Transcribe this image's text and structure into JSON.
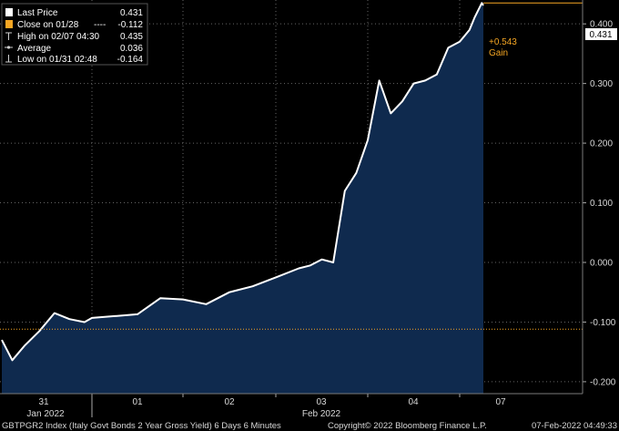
{
  "legend": {
    "items": [
      {
        "name": "legend-last-price",
        "icon": "white-square-icon",
        "label": "Last Price",
        "value": "0.431",
        "color": "#ffffff"
      },
      {
        "name": "legend-close",
        "icon": "orange-square-icon",
        "label": "Close on 01/28",
        "value": "-0.112",
        "color": "#f5a623",
        "dash": "----"
      },
      {
        "name": "legend-high",
        "icon": "high-marker-icon",
        "label": "High on 02/07 04:30",
        "value": "0.435"
      },
      {
        "name": "legend-average",
        "icon": "average-marker-icon",
        "label": "Average",
        "value": "0.036"
      },
      {
        "name": "legend-low",
        "icon": "low-marker-icon",
        "label": "Low on 01/31 02:48",
        "value": "-0.164"
      }
    ]
  },
  "annotations": {
    "last_value_tag": "0.431",
    "change": "+0.543",
    "change_label": "Gain"
  },
  "footer": {
    "left": "GBTPGR2 Index (Italy Govt Bonds 2 Year Gross Yield) 6 Days 6 Minutes",
    "center": "Copyright© 2022 Bloomberg Finance L.P.",
    "right": "07-Feb-2022 04:49:33"
  },
  "colors": {
    "background": "#000000",
    "area_fill": "#0f2a4e",
    "line": "#ffffff",
    "close_line": "#f5a623",
    "grid": "#666666",
    "text": "#d8d8d8",
    "accent": "#f5a623"
  },
  "chart_data": {
    "type": "area",
    "title": "",
    "xlabel": "",
    "ylabel": "",
    "ylim": [
      -0.22,
      0.44
    ],
    "yticks": [
      -0.2,
      -0.1,
      0.0,
      0.1,
      0.2,
      0.3,
      0.4
    ],
    "ytick_labels": [
      "-0.200",
      "-0.100",
      "0.000",
      "0.100",
      "0.200",
      "0.300",
      "0.400"
    ],
    "x_sessions": [
      "31",
      "01",
      "02",
      "03",
      "04",
      "07"
    ],
    "x_group_labels": [
      "Jan 2022",
      "Feb 2022"
    ],
    "close_reference": -0.112,
    "grid": true,
    "series": [
      {
        "name": "Last Price",
        "x": [
          "01/31 00:00",
          "01/31 02:48",
          "01/31 06:00",
          "01/31 10:00",
          "01/31 14:00",
          "01/31 18:00",
          "01/31 22:00",
          "02/01 00:00",
          "02/01 06:00",
          "02/01 12:00",
          "02/01 18:00",
          "02/02 00:00",
          "02/02 06:00",
          "02/02 12:00",
          "02/02 18:00",
          "02/03 00:00",
          "02/03 06:00",
          "02/03 09:00",
          "02/03 12:00",
          "02/03 15:00",
          "02/03 18:00",
          "02/03 21:00",
          "02/04 00:00",
          "02/04 03:00",
          "02/04 06:00",
          "02/04 09:00",
          "02/04 12:00",
          "02/04 15:00",
          "02/04 18:00",
          "02/04 21:00",
          "02/07 00:00",
          "02/07 02:00",
          "02/07 03:00",
          "02/07 04:30",
          "02/07 04:49"
        ],
        "values": [
          -0.13,
          -0.164,
          -0.14,
          -0.115,
          -0.085,
          -0.095,
          -0.1,
          -0.093,
          -0.09,
          -0.087,
          -0.06,
          -0.062,
          -0.07,
          -0.05,
          -0.04,
          -0.025,
          -0.01,
          -0.005,
          0.005,
          0.0,
          0.12,
          0.15,
          0.205,
          0.305,
          0.25,
          0.27,
          0.3,
          0.305,
          0.315,
          0.36,
          0.37,
          0.39,
          0.41,
          0.435,
          0.431
        ]
      }
    ]
  }
}
